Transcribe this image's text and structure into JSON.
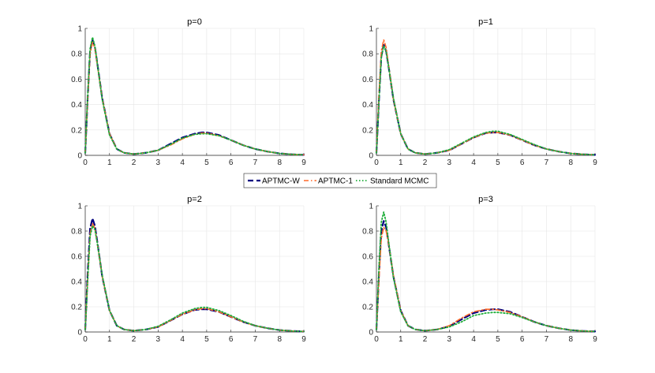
{
  "chart_data": [
    {
      "type": "line",
      "title": "p=0",
      "xlabel": "",
      "ylabel": "",
      "xlim": [
        0,
        9
      ],
      "ylim": [
        0,
        1
      ],
      "xticks": [
        "0",
        "1",
        "2",
        "3",
        "4",
        "5",
        "6",
        "7",
        "8",
        "9"
      ],
      "yticks": [
        "0",
        "0.2",
        "0.4",
        "0.6",
        "0.8",
        "1"
      ],
      "grid": true,
      "x": [
        0,
        0.1,
        0.2,
        0.3,
        0.4,
        0.5,
        0.7,
        1.0,
        1.3,
        1.6,
        2.0,
        2.5,
        3.0,
        3.5,
        4.0,
        4.5,
        4.8,
        5.0,
        5.5,
        6.0,
        6.5,
        7.0,
        7.5,
        8.0,
        8.5,
        9.0
      ],
      "series": [
        {
          "name": "APTMC-W",
          "values": [
            0.02,
            0.45,
            0.82,
            0.91,
            0.85,
            0.72,
            0.45,
            0.17,
            0.05,
            0.02,
            0.01,
            0.02,
            0.04,
            0.09,
            0.14,
            0.17,
            0.18,
            0.18,
            0.16,
            0.12,
            0.08,
            0.05,
            0.03,
            0.015,
            0.008,
            0.004
          ]
        },
        {
          "name": "APTMC-1",
          "values": [
            0.02,
            0.44,
            0.8,
            0.89,
            0.84,
            0.71,
            0.45,
            0.17,
            0.05,
            0.02,
            0.01,
            0.02,
            0.04,
            0.08,
            0.13,
            0.165,
            0.175,
            0.175,
            0.155,
            0.12,
            0.08,
            0.05,
            0.03,
            0.015,
            0.008,
            0.004
          ]
        },
        {
          "name": "Standard MCMC",
          "values": [
            0.02,
            0.47,
            0.84,
            0.93,
            0.86,
            0.72,
            0.44,
            0.16,
            0.05,
            0.02,
            0.01,
            0.02,
            0.04,
            0.085,
            0.135,
            0.165,
            0.17,
            0.17,
            0.155,
            0.12,
            0.08,
            0.05,
            0.03,
            0.015,
            0.008,
            0.004
          ]
        }
      ]
    },
    {
      "type": "line",
      "title": "p=1",
      "xlabel": "",
      "ylabel": "",
      "xlim": [
        0,
        9
      ],
      "ylim": [
        0,
        1
      ],
      "xticks": [
        "0",
        "1",
        "2",
        "3",
        "4",
        "5",
        "6",
        "7",
        "8",
        "9"
      ],
      "yticks": [
        "0",
        "0.2",
        "0.4",
        "0.6",
        "0.8",
        "1"
      ],
      "grid": true,
      "x": [
        0,
        0.1,
        0.2,
        0.3,
        0.4,
        0.5,
        0.7,
        1.0,
        1.3,
        1.6,
        2.0,
        2.5,
        3.0,
        3.5,
        4.0,
        4.5,
        4.8,
        5.0,
        5.5,
        6.0,
        6.5,
        7.0,
        7.5,
        8.0,
        8.5,
        9.0
      ],
      "series": [
        {
          "name": "APTMC-W",
          "values": [
            0.02,
            0.42,
            0.78,
            0.87,
            0.82,
            0.7,
            0.44,
            0.17,
            0.05,
            0.02,
            0.01,
            0.02,
            0.04,
            0.09,
            0.14,
            0.175,
            0.18,
            0.18,
            0.16,
            0.12,
            0.08,
            0.05,
            0.03,
            0.015,
            0.008,
            0.004
          ]
        },
        {
          "name": "APTMC-1",
          "values": [
            0.02,
            0.46,
            0.82,
            0.91,
            0.85,
            0.71,
            0.44,
            0.17,
            0.05,
            0.02,
            0.01,
            0.02,
            0.04,
            0.09,
            0.14,
            0.175,
            0.18,
            0.18,
            0.16,
            0.12,
            0.08,
            0.05,
            0.03,
            0.015,
            0.008,
            0.004
          ]
        },
        {
          "name": "Standard MCMC",
          "values": [
            0.02,
            0.41,
            0.77,
            0.86,
            0.82,
            0.7,
            0.45,
            0.17,
            0.05,
            0.02,
            0.01,
            0.02,
            0.045,
            0.095,
            0.145,
            0.18,
            0.19,
            0.19,
            0.165,
            0.125,
            0.085,
            0.05,
            0.03,
            0.015,
            0.008,
            0.004
          ]
        }
      ]
    },
    {
      "type": "line",
      "title": "p=2",
      "xlabel": "",
      "ylabel": "",
      "xlim": [
        0,
        9
      ],
      "ylim": [
        0,
        1
      ],
      "xticks": [
        "0",
        "1",
        "2",
        "3",
        "4",
        "5",
        "6",
        "7",
        "8",
        "9"
      ],
      "yticks": [
        "0",
        "0.2",
        "0.4",
        "0.6",
        "0.8",
        "1"
      ],
      "grid": true,
      "x": [
        0,
        0.1,
        0.2,
        0.3,
        0.4,
        0.5,
        0.7,
        1.0,
        1.3,
        1.6,
        2.0,
        2.5,
        3.0,
        3.5,
        4.0,
        4.5,
        4.8,
        5.0,
        5.5,
        6.0,
        6.5,
        7.0,
        7.5,
        8.0,
        8.5,
        9.0
      ],
      "series": [
        {
          "name": "APTMC-W",
          "values": [
            0.02,
            0.46,
            0.82,
            0.9,
            0.84,
            0.71,
            0.44,
            0.17,
            0.05,
            0.02,
            0.01,
            0.02,
            0.04,
            0.09,
            0.14,
            0.175,
            0.18,
            0.18,
            0.16,
            0.12,
            0.08,
            0.05,
            0.03,
            0.015,
            0.008,
            0.004
          ]
        },
        {
          "name": "APTMC-1",
          "values": [
            0.02,
            0.42,
            0.78,
            0.86,
            0.82,
            0.7,
            0.44,
            0.17,
            0.05,
            0.02,
            0.01,
            0.02,
            0.04,
            0.09,
            0.14,
            0.175,
            0.185,
            0.185,
            0.16,
            0.12,
            0.08,
            0.05,
            0.03,
            0.015,
            0.008,
            0.004
          ]
        },
        {
          "name": "Standard MCMC",
          "values": [
            0.02,
            0.4,
            0.76,
            0.84,
            0.81,
            0.7,
            0.45,
            0.17,
            0.05,
            0.02,
            0.01,
            0.02,
            0.045,
            0.095,
            0.15,
            0.185,
            0.195,
            0.195,
            0.17,
            0.13,
            0.085,
            0.05,
            0.03,
            0.015,
            0.008,
            0.004
          ]
        }
      ]
    },
    {
      "type": "line",
      "title": "p=3",
      "xlabel": "",
      "ylabel": "",
      "xlim": [
        0,
        9
      ],
      "ylim": [
        0,
        1
      ],
      "xticks": [
        "0",
        "1",
        "2",
        "3",
        "4",
        "5",
        "6",
        "7",
        "8",
        "9"
      ],
      "yticks": [
        "0",
        "0.2",
        "0.4",
        "0.6",
        "0.8",
        "1"
      ],
      "grid": true,
      "x": [
        0,
        0.1,
        0.2,
        0.3,
        0.4,
        0.5,
        0.7,
        1.0,
        1.3,
        1.6,
        2.0,
        2.5,
        3.0,
        3.5,
        4.0,
        4.5,
        4.8,
        5.0,
        5.5,
        6.0,
        6.5,
        7.0,
        7.5,
        8.0,
        8.5,
        9.0
      ],
      "series": [
        {
          "name": "APTMC-W",
          "values": [
            0.02,
            0.44,
            0.8,
            0.88,
            0.83,
            0.7,
            0.44,
            0.17,
            0.05,
            0.02,
            0.01,
            0.02,
            0.045,
            0.1,
            0.15,
            0.175,
            0.18,
            0.18,
            0.16,
            0.12,
            0.08,
            0.05,
            0.03,
            0.015,
            0.008,
            0.004
          ]
        },
        {
          "name": "APTMC-1",
          "values": [
            0.02,
            0.4,
            0.74,
            0.83,
            0.8,
            0.7,
            0.45,
            0.17,
            0.05,
            0.02,
            0.01,
            0.02,
            0.05,
            0.11,
            0.16,
            0.18,
            0.18,
            0.175,
            0.155,
            0.12,
            0.08,
            0.05,
            0.03,
            0.015,
            0.008,
            0.004
          ]
        },
        {
          "name": "Standard MCMC",
          "values": [
            0.02,
            0.5,
            0.87,
            0.95,
            0.87,
            0.72,
            0.43,
            0.16,
            0.05,
            0.02,
            0.01,
            0.02,
            0.04,
            0.08,
            0.13,
            0.15,
            0.155,
            0.155,
            0.145,
            0.115,
            0.08,
            0.05,
            0.03,
            0.015,
            0.008,
            0.004
          ]
        }
      ]
    }
  ],
  "legend": {
    "placement": "center",
    "items": [
      {
        "label": "APTMC-W",
        "color": "#00007f",
        "style": "dashed"
      },
      {
        "label": "APTMC-1",
        "color": "#ff6929",
        "style": "dashdot"
      },
      {
        "label": "Standard MCMC",
        "color": "#1fae3a",
        "style": "dotted"
      }
    ]
  },
  "colors": {
    "APTMC-W": "#00007f",
    "APTMC-1": "#ff6929",
    "Standard MCMC": "#1fae3a",
    "grid": "#e6e6e6",
    "axis": "#262626"
  }
}
